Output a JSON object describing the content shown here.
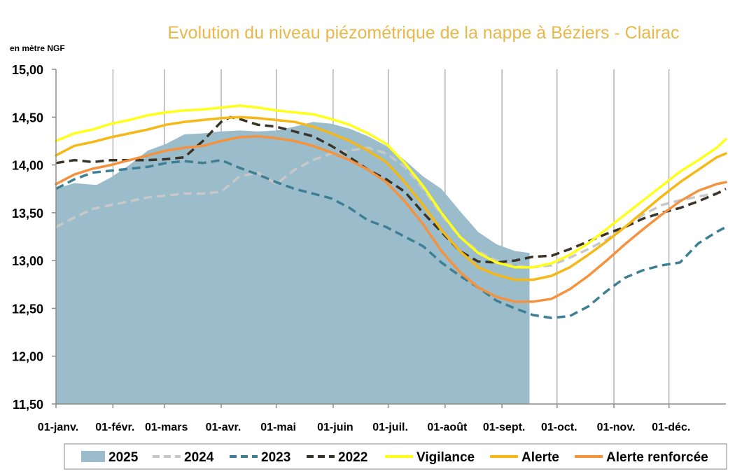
{
  "chart_data": {
    "type": "line",
    "title": "Evolution  du niveau piézométrique  de la nappe à Béziers  - Clairac",
    "ylabel": "en mètre NGF",
    "ylim": [
      11.5,
      15.0
    ],
    "xlim": [
      0,
      365
    ],
    "y_ticks": [
      "11,50",
      "12,00",
      "12,50",
      "13,00",
      "13,50",
      "14,00",
      "14,50",
      "15,00"
    ],
    "y_tick_values": [
      11.5,
      12.0,
      12.5,
      13.0,
      13.5,
      14.0,
      14.5,
      15.0
    ],
    "x_ticks": [
      "01-janv.",
      "01-févr.",
      "01-mars",
      "01-avr.",
      "01-mai",
      "01-juin",
      "01-juil.",
      "01-août",
      "01-sept.",
      "01-oct.",
      "01-nov.",
      "01-déc."
    ],
    "x_tick_values": [
      0,
      31,
      59,
      90,
      120,
      151,
      181,
      212,
      243,
      273,
      304,
      334
    ],
    "grid": "vertical",
    "legend_position": "bottom",
    "colors": {
      "2025": "#9bbccb",
      "2024": "#c8c8c8",
      "2023": "#3e7f94",
      "2022": "#3a3428",
      "Vigilance": "#ffff1a",
      "Alerte": "#f5b817",
      "Alerte renforcée": "#f5923e"
    },
    "series": [
      {
        "name": "2025",
        "kind": "area",
        "x": [
          0,
          10,
          22,
          30,
          40,
          50,
          60,
          70,
          80,
          90,
          100,
          110,
          120,
          130,
          140,
          150,
          160,
          170,
          180,
          190,
          200,
          210,
          220,
          230,
          240,
          250,
          258
        ],
        "y": [
          13.75,
          13.81,
          13.79,
          13.87,
          14.0,
          14.15,
          14.22,
          14.32,
          14.33,
          14.35,
          14.36,
          14.35,
          14.36,
          14.4,
          14.45,
          14.43,
          14.38,
          14.3,
          14.2,
          14.05,
          13.88,
          13.75,
          13.52,
          13.3,
          13.17,
          13.1,
          13.08
        ]
      },
      {
        "name": "2024",
        "kind": "dashed",
        "x": [
          0,
          10,
          20,
          30,
          40,
          50,
          60,
          70,
          80,
          90,
          100,
          110,
          120,
          130,
          140,
          150,
          160,
          170,
          180,
          190,
          200,
          210,
          220,
          230,
          240,
          250,
          260,
          270,
          280,
          290,
          300,
          310,
          320,
          330,
          340,
          350,
          365
        ],
        "y": [
          13.35,
          13.45,
          13.54,
          13.58,
          13.62,
          13.66,
          13.68,
          13.7,
          13.7,
          13.72,
          13.88,
          13.92,
          13.8,
          13.95,
          14.05,
          14.12,
          14.15,
          14.18,
          14.12,
          13.98,
          13.75,
          13.48,
          13.25,
          13.1,
          13.0,
          12.95,
          12.93,
          12.95,
          13.03,
          13.12,
          13.22,
          13.35,
          13.48,
          13.58,
          13.63,
          13.67,
          13.72
        ]
      },
      {
        "name": "2023",
        "kind": "dashed",
        "x": [
          0,
          10,
          20,
          30,
          40,
          50,
          60,
          70,
          80,
          90,
          100,
          110,
          120,
          130,
          140,
          150,
          160,
          170,
          180,
          190,
          200,
          210,
          220,
          230,
          240,
          250,
          260,
          270,
          280,
          290,
          300,
          310,
          320,
          330,
          340,
          350,
          360,
          365
        ],
        "y": [
          13.75,
          13.85,
          13.92,
          13.94,
          13.96,
          13.98,
          14.02,
          14.04,
          14.02,
          14.05,
          13.97,
          13.9,
          13.82,
          13.75,
          13.7,
          13.65,
          13.55,
          13.42,
          13.35,
          13.25,
          13.15,
          12.98,
          12.84,
          12.72,
          12.58,
          12.5,
          12.43,
          12.4,
          12.42,
          12.52,
          12.68,
          12.82,
          12.9,
          12.95,
          12.98,
          13.18,
          13.3,
          13.35
        ]
      },
      {
        "name": "2022",
        "kind": "dashed",
        "x": [
          0,
          10,
          20,
          30,
          40,
          50,
          60,
          70,
          80,
          90,
          95,
          100,
          110,
          120,
          130,
          140,
          150,
          160,
          170,
          180,
          190,
          200,
          210,
          220,
          230,
          240,
          250,
          260,
          270,
          280,
          290,
          300,
          310,
          320,
          330,
          340,
          350,
          360,
          365
        ],
        "y": [
          14.02,
          14.05,
          14.03,
          14.05,
          14.05,
          14.05,
          14.06,
          14.08,
          14.25,
          14.45,
          14.5,
          14.48,
          14.42,
          14.4,
          14.35,
          14.3,
          14.2,
          14.08,
          13.95,
          13.85,
          13.72,
          13.5,
          13.3,
          13.1,
          12.99,
          12.98,
          13.0,
          13.04,
          13.05,
          13.12,
          13.2,
          13.28,
          13.35,
          13.44,
          13.5,
          13.55,
          13.62,
          13.7,
          13.75
        ]
      },
      {
        "name": "Vigilance",
        "kind": "solid",
        "x": [
          0,
          10,
          20,
          30,
          40,
          50,
          60,
          70,
          80,
          90,
          100,
          110,
          120,
          130,
          140,
          150,
          160,
          170,
          180,
          190,
          200,
          210,
          220,
          230,
          240,
          250,
          260,
          270,
          280,
          290,
          300,
          310,
          320,
          330,
          340,
          350,
          360,
          365
        ],
        "y": [
          14.25,
          14.33,
          14.37,
          14.43,
          14.47,
          14.52,
          14.55,
          14.57,
          14.58,
          14.6,
          14.62,
          14.6,
          14.57,
          14.55,
          14.53,
          14.48,
          14.42,
          14.33,
          14.22,
          14.02,
          13.78,
          13.5,
          13.25,
          13.08,
          12.98,
          12.93,
          12.93,
          12.97,
          13.06,
          13.18,
          13.33,
          13.48,
          13.63,
          13.78,
          13.93,
          14.05,
          14.18,
          14.27
        ]
      },
      {
        "name": "Alerte",
        "kind": "solid",
        "x": [
          0,
          10,
          20,
          30,
          40,
          50,
          60,
          70,
          80,
          90,
          100,
          110,
          120,
          130,
          140,
          150,
          160,
          170,
          180,
          190,
          200,
          210,
          220,
          230,
          240,
          250,
          260,
          270,
          280,
          290,
          300,
          310,
          320,
          330,
          340,
          350,
          360,
          365
        ],
        "y": [
          14.1,
          14.2,
          14.24,
          14.29,
          14.33,
          14.37,
          14.42,
          14.45,
          14.47,
          14.49,
          14.5,
          14.49,
          14.47,
          14.45,
          14.4,
          14.33,
          14.25,
          14.15,
          14.03,
          13.82,
          13.58,
          13.32,
          13.1,
          12.93,
          12.85,
          12.8,
          12.8,
          12.84,
          12.93,
          13.06,
          13.2,
          13.35,
          13.51,
          13.67,
          13.82,
          13.95,
          14.08,
          14.12
        ]
      },
      {
        "name": "Alerte renforcée",
        "kind": "solid",
        "x": [
          0,
          10,
          20,
          30,
          40,
          50,
          60,
          70,
          80,
          90,
          100,
          110,
          120,
          130,
          140,
          150,
          160,
          170,
          180,
          190,
          200,
          210,
          220,
          230,
          240,
          250,
          260,
          270,
          280,
          290,
          300,
          310,
          320,
          330,
          340,
          350,
          360,
          365
        ],
        "y": [
          13.8,
          13.9,
          13.96,
          14.0,
          14.05,
          14.1,
          14.15,
          14.18,
          14.2,
          14.25,
          14.29,
          14.3,
          14.28,
          14.25,
          14.2,
          14.13,
          14.05,
          13.95,
          13.82,
          13.62,
          13.38,
          13.1,
          12.88,
          12.72,
          12.62,
          12.57,
          12.57,
          12.6,
          12.7,
          12.84,
          13.0,
          13.17,
          13.33,
          13.48,
          13.62,
          13.73,
          13.8,
          13.82
        ]
      }
    ]
  }
}
